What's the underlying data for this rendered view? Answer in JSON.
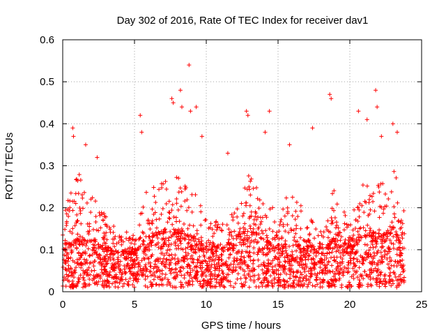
{
  "chart_data": {
    "type": "scatter",
    "title": "Day 302 of 2016, Rate Of TEC Index for receiver dav1",
    "xlabel": "GPS time / hours",
    "ylabel": "ROTI / TECUs",
    "xlim": [
      0,
      25
    ],
    "ylim": [
      0,
      0.6
    ],
    "xticks": [
      0,
      5,
      10,
      15,
      20,
      25
    ],
    "xtick_labels": [
      "0",
      "5",
      "10",
      "15",
      "20",
      "25"
    ],
    "yticks": [
      0,
      0.1,
      0.2,
      0.3,
      0.4,
      0.5,
      0.6
    ],
    "ytick_labels": [
      "0",
      "0.1",
      "0.2",
      "0.3",
      "0.4",
      "0.5",
      "0.6"
    ],
    "grid": true,
    "marker": "+",
    "marker_color": "#ff0000",
    "series": [
      {
        "name": "ROTI",
        "hourly_envelope": {
          "hours": [
            0,
            1,
            2,
            3,
            4,
            5,
            6,
            7,
            8,
            9,
            10,
            11,
            12,
            13,
            14,
            15,
            16,
            17,
            18,
            19,
            20,
            21,
            22,
            23,
            23.8
          ],
          "typical_max": [
            0.19,
            0.29,
            0.23,
            0.18,
            0.15,
            0.14,
            0.26,
            0.29,
            0.28,
            0.25,
            0.18,
            0.17,
            0.2,
            0.3,
            0.23,
            0.19,
            0.26,
            0.17,
            0.18,
            0.25,
            0.16,
            0.29,
            0.26,
            0.3,
            0.2
          ],
          "dense_band_max": [
            0.1,
            0.12,
            0.12,
            0.1,
            0.09,
            0.09,
            0.13,
            0.14,
            0.14,
            0.13,
            0.1,
            0.1,
            0.12,
            0.15,
            0.12,
            0.1,
            0.11,
            0.1,
            0.1,
            0.12,
            0.1,
            0.13,
            0.13,
            0.14,
            0.1
          ]
        },
        "notable_points": [
          {
            "x": 0.7,
            "y": 0.39
          },
          {
            "x": 0.75,
            "y": 0.37
          },
          {
            "x": 1.6,
            "y": 0.35
          },
          {
            "x": 2.4,
            "y": 0.32
          },
          {
            "x": 5.4,
            "y": 0.42
          },
          {
            "x": 5.5,
            "y": 0.38
          },
          {
            "x": 7.6,
            "y": 0.46
          },
          {
            "x": 7.7,
            "y": 0.45
          },
          {
            "x": 8.2,
            "y": 0.48
          },
          {
            "x": 8.3,
            "y": 0.44
          },
          {
            "x": 8.8,
            "y": 0.54
          },
          {
            "x": 8.9,
            "y": 0.43
          },
          {
            "x": 9.3,
            "y": 0.44
          },
          {
            "x": 9.7,
            "y": 0.37
          },
          {
            "x": 11.5,
            "y": 0.33
          },
          {
            "x": 12.8,
            "y": 0.43
          },
          {
            "x": 12.9,
            "y": 0.42
          },
          {
            "x": 14.1,
            "y": 0.38
          },
          {
            "x": 14.4,
            "y": 0.43
          },
          {
            "x": 15.8,
            "y": 0.35
          },
          {
            "x": 17.4,
            "y": 0.39
          },
          {
            "x": 18.6,
            "y": 0.47
          },
          {
            "x": 18.7,
            "y": 0.46
          },
          {
            "x": 20.6,
            "y": 0.43
          },
          {
            "x": 21.2,
            "y": 0.41
          },
          {
            "x": 21.8,
            "y": 0.48
          },
          {
            "x": 21.9,
            "y": 0.44
          },
          {
            "x": 22.2,
            "y": 0.37
          },
          {
            "x": 23.0,
            "y": 0.4
          },
          {
            "x": 23.3,
            "y": 0.38
          }
        ]
      }
    ]
  }
}
